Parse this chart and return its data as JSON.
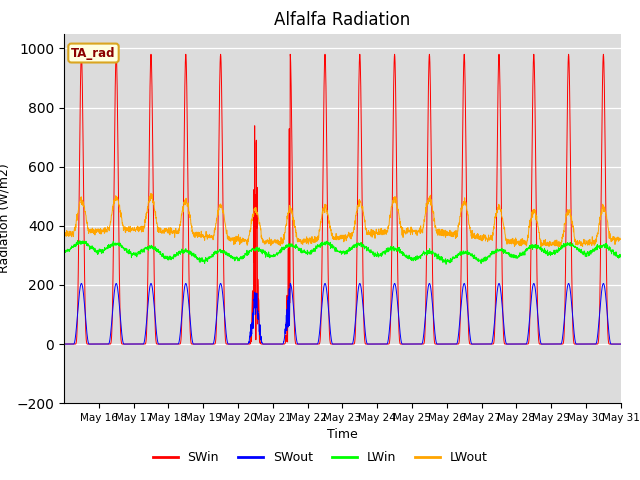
{
  "title": "Alfalfa Radiation",
  "ylabel": "Radiation (W/m2)",
  "xlabel": "Time",
  "ylim": [
    -200,
    1050
  ],
  "yticks": [
    -200,
    0,
    200,
    400,
    600,
    800,
    1000
  ],
  "legend_label": "TA_rad",
  "series_names": [
    "SWin",
    "SWout",
    "LWin",
    "LWout"
  ],
  "series_colors": [
    "red",
    "blue",
    "lime",
    "orange"
  ],
  "background_color": "#dcdcdc",
  "n_days": 16,
  "start_day": 15,
  "ppd": 144,
  "SWin_peak": 980,
  "SWout_peak": 205,
  "LWin_base": 300,
  "LWout_base": 370,
  "LWout_peak_amp": 110
}
